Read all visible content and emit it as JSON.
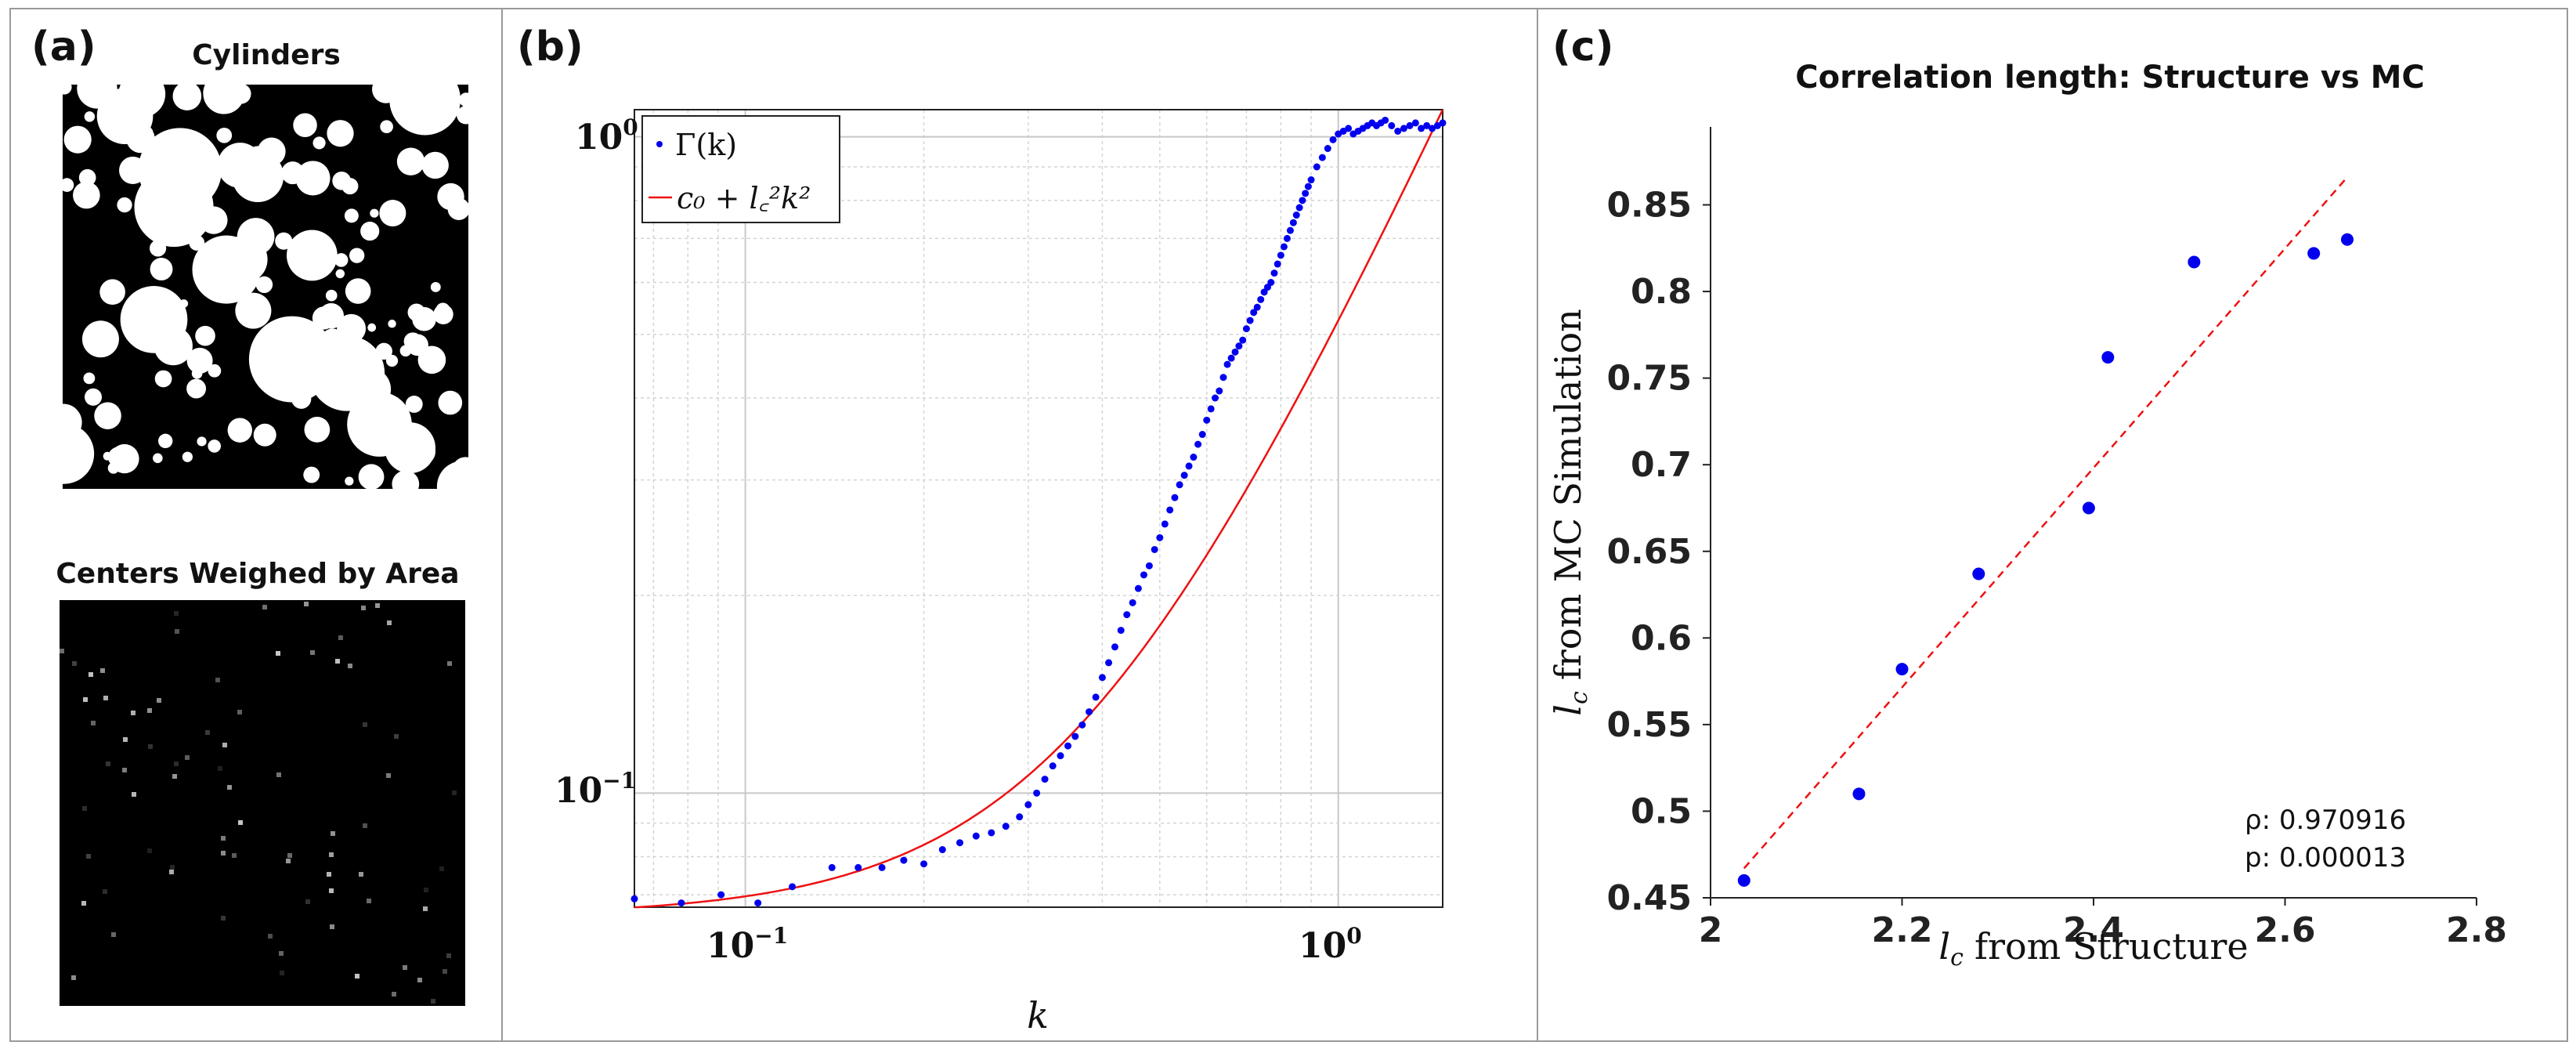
{
  "panel_a": {
    "label": "(a)",
    "top_title": "Cylinders",
    "bottom_title": "Centers Weighed by Area"
  },
  "panel_b": {
    "label": "(b)",
    "legend_series": "Γ(k)",
    "legend_fit": "c₀ + l꜀²k²",
    "xlabel": "k",
    "ytick_top": "10",
    "ytick_top_exp": "0",
    "ytick_mid": "10",
    "ytick_mid_exp": "−1",
    "xtick_left": "10",
    "xtick_left_exp": "−1",
    "xtick_right": "10",
    "xtick_right_exp": "0"
  },
  "panel_c": {
    "label": "(c)",
    "title": "Correlation length: Structure vs MC",
    "xlabel": "from Structure",
    "ylabel": "from MC Simulation",
    "var": "l",
    "sub": "c",
    "rho_label": "ρ: 0.970916",
    "p_label": "p: 0.000013"
  },
  "colors": {
    "points": "#0000ee",
    "fit": "#ee1111",
    "axis": "#222222",
    "grid": "#cccccc"
  },
  "chart_data": [
    {
      "type": "scatter",
      "scale": "log-log",
      "xlabel": "k",
      "ylabel": "",
      "xlim": [
        0.065,
        1.5
      ],
      "ylim": [
        0.067,
        1.1
      ],
      "grid": true,
      "legend": "top-left",
      "series": [
        {
          "name": "Γ(k)",
          "style": "points",
          "x": [
            0.065,
            0.078,
            0.091,
            0.105,
            0.12,
            0.14,
            0.155,
            0.17,
            0.185,
            0.2,
            0.215,
            0.23,
            0.245,
            0.26,
            0.275,
            0.29,
            0.3,
            0.31,
            0.32,
            0.33,
            0.34,
            0.35,
            0.36,
            0.37,
            0.38,
            0.39,
            0.4,
            0.41,
            0.42,
            0.43,
            0.44,
            0.45,
            0.46,
            0.47,
            0.48,
            0.49,
            0.5,
            0.51,
            0.52,
            0.53,
            0.54,
            0.55,
            0.56,
            0.57,
            0.58,
            0.59,
            0.6,
            0.61,
            0.62,
            0.63,
            0.64,
            0.65,
            0.66,
            0.67,
            0.68,
            0.69,
            0.7,
            0.71,
            0.72,
            0.73,
            0.74,
            0.75,
            0.76,
            0.77,
            0.78,
            0.79,
            0.8,
            0.81,
            0.82,
            0.83,
            0.84,
            0.85,
            0.86,
            0.87,
            0.88,
            0.89,
            0.9,
            0.92,
            0.94,
            0.96,
            0.98,
            1.0,
            1.02,
            1.04,
            1.06,
            1.08,
            1.1,
            1.12,
            1.14,
            1.16,
            1.18,
            1.2,
            1.23,
            1.26,
            1.29,
            1.32,
            1.35,
            1.38,
            1.41,
            1.44,
            1.47,
            1.5
          ],
          "y": [
            0.069,
            0.068,
            0.07,
            0.068,
            0.072,
            0.077,
            0.077,
            0.077,
            0.079,
            0.078,
            0.082,
            0.084,
            0.086,
            0.087,
            0.089,
            0.092,
            0.096,
            0.1,
            0.105,
            0.11,
            0.114,
            0.118,
            0.122,
            0.127,
            0.133,
            0.14,
            0.15,
            0.158,
            0.167,
            0.177,
            0.187,
            0.195,
            0.205,
            0.215,
            0.222,
            0.235,
            0.245,
            0.257,
            0.27,
            0.282,
            0.295,
            0.305,
            0.315,
            0.325,
            0.34,
            0.352,
            0.37,
            0.385,
            0.4,
            0.41,
            0.43,
            0.45,
            0.46,
            0.47,
            0.48,
            0.49,
            0.51,
            0.525,
            0.54,
            0.55,
            0.565,
            0.58,
            0.59,
            0.6,
            0.62,
            0.64,
            0.66,
            0.68,
            0.7,
            0.72,
            0.74,
            0.76,
            0.78,
            0.8,
            0.82,
            0.84,
            0.86,
            0.9,
            0.93,
            0.96,
            0.99,
            1.01,
            1.02,
            1.03,
            1.01,
            1.02,
            1.03,
            1.04,
            1.05,
            1.04,
            1.05,
            1.06,
            1.04,
            1.02,
            1.03,
            1.04,
            1.05,
            1.03,
            1.04,
            1.03,
            1.04,
            1.05
          ]
        },
        {
          "name": "c₀ + l꜀²k²",
          "style": "line",
          "c0": 0.065,
          "lc2": 0.46
        }
      ]
    },
    {
      "type": "scatter",
      "title": "Correlation length: Structure vs MC",
      "xlabel": "lc from Structure",
      "ylabel": "lc from MC Simulation",
      "xlim": [
        2.0,
        2.8
      ],
      "ylim": [
        0.45,
        0.9
      ],
      "xticks": [
        "2",
        "2.2",
        "2.4",
        "2.6",
        "2.8"
      ],
      "xtick_values": [
        2.0,
        2.2,
        2.4,
        2.6,
        2.8
      ],
      "yticks": [
        "0.45",
        "0.5",
        "0.55",
        "0.6",
        "0.65",
        "0.7",
        "0.75",
        "0.8",
        "0.85"
      ],
      "ytick_values": [
        0.45,
        0.5,
        0.55,
        0.6,
        0.65,
        0.7,
        0.75,
        0.8,
        0.85
      ],
      "grid": false,
      "series": [
        {
          "name": "",
          "style": "points",
          "x": [
            2.035,
            2.155,
            2.2,
            2.28,
            2.395,
            2.415,
            2.505,
            2.63,
            2.665
          ],
          "y": [
            0.46,
            0.51,
            0.582,
            0.637,
            0.675,
            0.762,
            0.817,
            0.822,
            0.83
          ]
        },
        {
          "name": "",
          "style": "dashed-line",
          "x": [
            2.035,
            2.665
          ],
          "y": [
            0.467,
            0.866
          ]
        }
      ],
      "annotations": [
        "ρ: 0.970916",
        "p: 0.000013"
      ]
    }
  ]
}
